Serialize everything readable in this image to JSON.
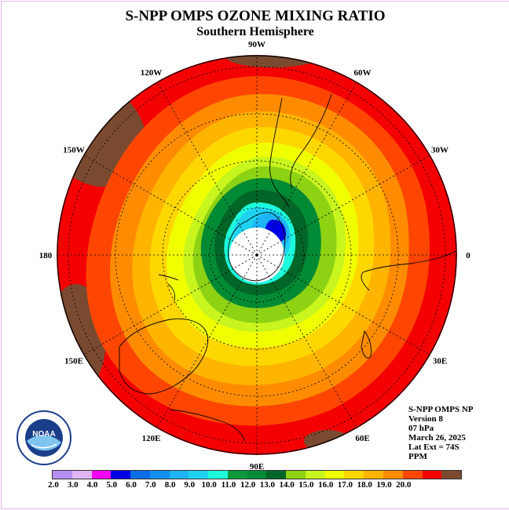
{
  "header": {
    "title": "S-NPP OMPS OZONE MIXING RATIO",
    "subtitle": "Southern Hemisphere"
  },
  "map": {
    "projection": "polar-stereographic-south",
    "lat_extent": "74S",
    "colors": {
      "ocean_red": "#f50000",
      "land_brown": "#7a4a30",
      "coast_line": "#000000",
      "grid_line": "#000000"
    },
    "longitude_labels": [
      {
        "text": "0",
        "lon": 0
      },
      {
        "text": "30W",
        "lon": -30
      },
      {
        "text": "60W",
        "lon": -60
      },
      {
        "text": "90W",
        "lon": -90
      },
      {
        "text": "120W",
        "lon": -120
      },
      {
        "text": "150W",
        "lon": -150
      },
      {
        "text": "180",
        "lon": 180
      },
      {
        "text": "150E",
        "lon": 150
      },
      {
        "text": "120E",
        "lon": 120
      },
      {
        "text": "90E",
        "lon": 90
      },
      {
        "text": "60E",
        "lon": 60
      },
      {
        "text": "30E",
        "lon": 30
      }
    ]
  },
  "info": {
    "lines": [
      "S-NPP OMPS NP",
      "Version 8",
      "07 hPa",
      "March 26, 2025",
      "Lat Ext = 74S",
      "PPM"
    ]
  },
  "logo": {
    "text": "NOAA",
    "icon": "noaa-logo-icon"
  },
  "colorbar": {
    "colors": [
      "#b68ff0",
      "#e0b6f2",
      "#f500f5",
      "#0000e6",
      "#0a6ee6",
      "#1490f0",
      "#1eb4f5",
      "#1ed2f0",
      "#1efadc",
      "#0a9a3c",
      "#008a34",
      "#006628",
      "#8ed214",
      "#c8f51e",
      "#f0ff00",
      "#ffd700",
      "#ffb400",
      "#ff8c00",
      "#ff4600",
      "#f50000",
      "#7a4a30"
    ],
    "labels": [
      "2.0",
      "3.0",
      "4.0",
      "5.0",
      "6.0",
      "7.0",
      "8.0",
      "9.0",
      "10.0",
      "11.0",
      "12.0",
      "13.0",
      "14.0",
      "15.0",
      "16.0",
      "17.0",
      "18.0",
      "19.0",
      "20.0"
    ],
    "unit": "PPM"
  }
}
